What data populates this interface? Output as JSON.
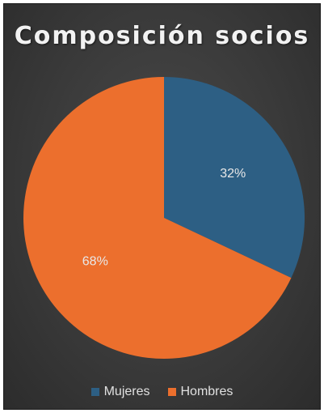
{
  "chart_data": {
    "type": "pie",
    "title": "Composición socios",
    "categories": [
      "Mujeres",
      "Hombres"
    ],
    "values": [
      32,
      68
    ],
    "value_labels": [
      "32%",
      "68%"
    ],
    "colors": [
      "#2d5f84",
      "#ec6f2d"
    ],
    "legend_position": "bottom"
  },
  "legend": {
    "items": [
      {
        "label": "Mujeres",
        "color": "#2d5f84"
      },
      {
        "label": "Hombres",
        "color": "#ec6f2d"
      }
    ]
  }
}
